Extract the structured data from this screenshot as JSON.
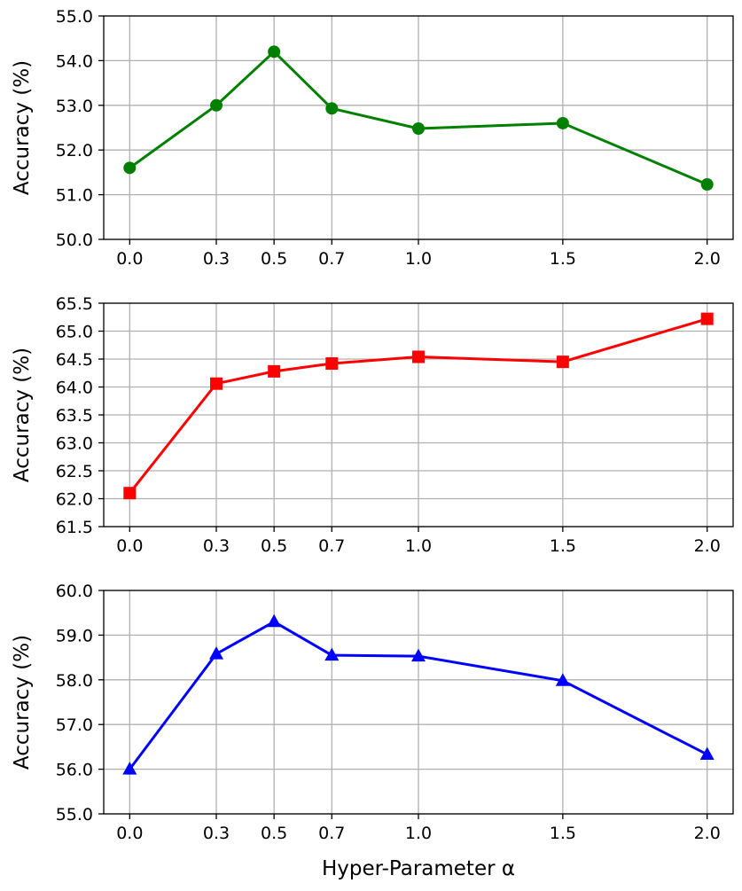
{
  "chart_data": [
    {
      "type": "line",
      "ylabel": "Accuracy (%)",
      "xlabel": "",
      "x": [
        0.0,
        0.3,
        0.5,
        0.7,
        1.0,
        1.5,
        2.0
      ],
      "x_tick_labels": [
        "0.0",
        "0.3",
        "0.5",
        "0.7",
        "1.0",
        "1.5",
        "2.0"
      ],
      "ylim": [
        50.0,
        55.0
      ],
      "y_ticks": [
        50.0,
        51.0,
        52.0,
        53.0,
        54.0,
        55.0
      ],
      "y_tick_labels": [
        "50.0",
        "51.0",
        "52.0",
        "53.0",
        "54.0",
        "55.0"
      ],
      "grid": true,
      "series": [
        {
          "values": [
            51.6,
            53.0,
            54.2,
            52.93,
            52.48,
            52.6,
            51.23
          ],
          "color": "#008000",
          "marker": "circle"
        }
      ]
    },
    {
      "type": "line",
      "ylabel": "Accuracy (%)",
      "xlabel": "",
      "x": [
        0.0,
        0.3,
        0.5,
        0.7,
        1.0,
        1.5,
        2.0
      ],
      "x_tick_labels": [
        "0.0",
        "0.3",
        "0.5",
        "0.7",
        "1.0",
        "1.5",
        "2.0"
      ],
      "ylim": [
        61.5,
        65.5
      ],
      "y_ticks": [
        61.5,
        62.0,
        62.5,
        63.0,
        63.5,
        64.0,
        64.5,
        65.0,
        65.5
      ],
      "y_tick_labels": [
        "61.5",
        "62.0",
        "62.5",
        "63.0",
        "63.5",
        "64.0",
        "64.5",
        "65.0",
        "65.5"
      ],
      "grid": true,
      "series": [
        {
          "values": [
            62.1,
            64.06,
            64.28,
            64.42,
            64.54,
            64.45,
            65.22
          ],
          "color": "#ff0000",
          "marker": "square"
        }
      ]
    },
    {
      "type": "line",
      "ylabel": "Accuracy (%)",
      "xlabel": "Hyper-Parameter α",
      "x": [
        0.0,
        0.3,
        0.5,
        0.7,
        1.0,
        1.5,
        2.0
      ],
      "x_tick_labels": [
        "0.0",
        "0.3",
        "0.5",
        "0.7",
        "1.0",
        "1.5",
        "2.0"
      ],
      "ylim": [
        55.0,
        60.0
      ],
      "y_ticks": [
        55.0,
        56.0,
        57.0,
        58.0,
        59.0,
        60.0
      ],
      "y_tick_labels": [
        "55.0",
        "56.0",
        "57.0",
        "58.0",
        "59.0",
        "60.0"
      ],
      "grid": true,
      "series": [
        {
          "values": [
            56.0,
            58.58,
            59.3,
            58.55,
            58.53,
            57.98,
            56.33
          ],
          "color": "#0000ff",
          "marker": "triangle"
        }
      ]
    }
  ]
}
